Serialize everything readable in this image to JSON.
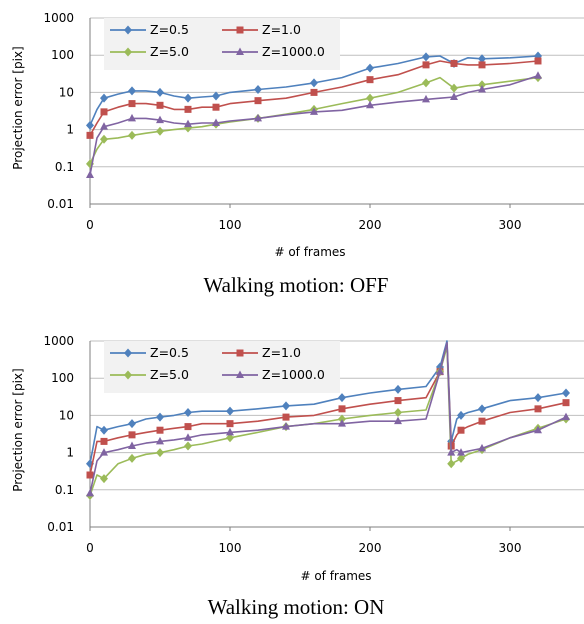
{
  "chart_data": [
    {
      "type": "line",
      "title": "",
      "caption": "Walking motion: OFF",
      "xlabel": "# of frames",
      "ylabel": "Projection error [pix]",
      "xlim": [
        0,
        350
      ],
      "ylim": [
        0.01,
        1000
      ],
      "y_scale": "log",
      "x_ticks": [
        "0",
        "100",
        "200",
        "300"
      ],
      "y_ticks": [
        "0.01",
        "0.1",
        "1",
        "10",
        "100",
        "1000"
      ],
      "grid": "horizontal",
      "legend": "top-left",
      "series": [
        {
          "name": "Z=0.5",
          "color": "#4f81bd",
          "marker": "diamond",
          "x": [
            0,
            5,
            10,
            20,
            30,
            40,
            50,
            60,
            70,
            80,
            90,
            100,
            120,
            140,
            160,
            180,
            200,
            220,
            240,
            250,
            260,
            270,
            280,
            300,
            320
          ],
          "y": [
            1.3,
            3.5,
            7,
            9,
            11,
            11,
            10,
            8,
            7,
            7.5,
            8,
            10,
            12,
            14,
            18,
            25,
            45,
            60,
            90,
            95,
            60,
            85,
            80,
            85,
            95
          ]
        },
        {
          "name": "Z=1.0",
          "color": "#c0504d",
          "marker": "square",
          "x": [
            0,
            5,
            10,
            20,
            30,
            40,
            50,
            60,
            70,
            80,
            90,
            100,
            120,
            140,
            160,
            180,
            200,
            220,
            240,
            250,
            260,
            270,
            280,
            300,
            320
          ],
          "y": [
            0.7,
            1.5,
            3,
            4,
            5,
            5,
            4.5,
            3.5,
            3.5,
            4,
            4,
            5,
            6,
            7,
            10,
            14,
            22,
            30,
            55,
            70,
            60,
            55,
            55,
            60,
            70
          ]
        },
        {
          "name": "Z=5.0",
          "color": "#9bbb59",
          "marker": "diamond",
          "x": [
            0,
            5,
            10,
            20,
            30,
            40,
            50,
            60,
            70,
            80,
            90,
            100,
            120,
            140,
            160,
            180,
            200,
            220,
            240,
            250,
            260,
            270,
            280,
            300,
            320
          ],
          "y": [
            0.12,
            0.3,
            0.55,
            0.6,
            0.7,
            0.8,
            0.9,
            1.0,
            1.1,
            1.2,
            1.4,
            1.6,
            2.0,
            2.6,
            3.5,
            5,
            7,
            10,
            18,
            25,
            13,
            15,
            16,
            20,
            25
          ]
        },
        {
          "name": "Z=1000.0",
          "color": "#8064a2",
          "marker": "triangle",
          "x": [
            0,
            5,
            10,
            20,
            30,
            40,
            50,
            60,
            70,
            80,
            90,
            100,
            120,
            140,
            160,
            180,
            200,
            220,
            240,
            250,
            260,
            270,
            280,
            300,
            320
          ],
          "y": [
            0.06,
            0.6,
            1.2,
            1.5,
            2,
            2,
            1.8,
            1.5,
            1.4,
            1.5,
            1.5,
            1.7,
            2.0,
            2.5,
            3,
            3.3,
            4.5,
            5.5,
            6.5,
            7,
            7.5,
            10,
            12,
            16,
            28
          ]
        }
      ]
    },
    {
      "type": "line",
      "title": "",
      "caption": "Walking motion: ON",
      "xlabel": "# of frames",
      "ylabel": "Projection error [pix]",
      "xlim": [
        0,
        350
      ],
      "ylim": [
        0.01,
        1000
      ],
      "y_scale": "log",
      "x_ticks": [
        "0",
        "100",
        "200",
        "300"
      ],
      "y_ticks": [
        "0.01",
        "0.1",
        "1",
        "10",
        "100",
        "1000"
      ],
      "grid": "horizontal",
      "legend": "top-left",
      "series": [
        {
          "name": "Z=0.5",
          "color": "#4f81bd",
          "marker": "diamond",
          "x": [
            0,
            5,
            10,
            20,
            30,
            40,
            50,
            60,
            70,
            80,
            100,
            120,
            140,
            160,
            180,
            200,
            220,
            240,
            250,
            255,
            258,
            262,
            265,
            270,
            280,
            300,
            320,
            340
          ],
          "y": [
            0.5,
            5,
            4,
            5,
            6,
            8,
            9,
            10,
            12,
            13,
            13,
            15,
            18,
            20,
            30,
            40,
            50,
            60,
            200,
            1000,
            2,
            8,
            10,
            12,
            15,
            25,
            30,
            40
          ]
        },
        {
          "name": "Z=1.0",
          "color": "#c0504d",
          "marker": "square",
          "x": [
            0,
            5,
            10,
            20,
            30,
            40,
            50,
            60,
            70,
            80,
            100,
            120,
            140,
            160,
            180,
            200,
            220,
            240,
            250,
            255,
            258,
            262,
            265,
            270,
            280,
            300,
            320,
            340
          ],
          "y": [
            0.25,
            2,
            2,
            2.5,
            3,
            3.5,
            4,
            4.5,
            5,
            6,
            6,
            7,
            9,
            10,
            15,
            20,
            25,
            30,
            150,
            800,
            1.5,
            3,
            4,
            5,
            7,
            12,
            15,
            22
          ]
        },
        {
          "name": "Z=5.0",
          "color": "#9bbb59",
          "marker": "diamond",
          "x": [
            0,
            5,
            10,
            20,
            30,
            40,
            50,
            60,
            70,
            80,
            100,
            120,
            140,
            160,
            180,
            200,
            220,
            240,
            250,
            255,
            258,
            262,
            265,
            270,
            280,
            300,
            320,
            340
          ],
          "y": [
            0.07,
            0.25,
            0.2,
            0.5,
            0.7,
            0.9,
            1.0,
            1.2,
            1.5,
            1.7,
            2.5,
            3.5,
            5,
            6,
            8,
            10,
            12,
            14,
            150,
            700,
            0.5,
            0.6,
            0.7,
            0.9,
            1.2,
            2.5,
            4.5,
            8
          ]
        },
        {
          "name": "Z=1000.0",
          "color": "#8064a2",
          "marker": "triangle",
          "x": [
            0,
            5,
            10,
            20,
            30,
            40,
            50,
            60,
            70,
            80,
            100,
            120,
            140,
            160,
            180,
            200,
            220,
            240,
            250,
            255,
            258,
            262,
            265,
            270,
            280,
            300,
            320,
            340
          ],
          "y": [
            0.08,
            0.6,
            1.0,
            1.2,
            1.5,
            1.8,
            2.0,
            2.2,
            2.5,
            3,
            3.5,
            4,
            5,
            6,
            6,
            7,
            7,
            8,
            150,
            900,
            1.0,
            1.2,
            1.0,
            1.1,
            1.3,
            2.5,
            4,
            9
          ]
        }
      ]
    }
  ]
}
